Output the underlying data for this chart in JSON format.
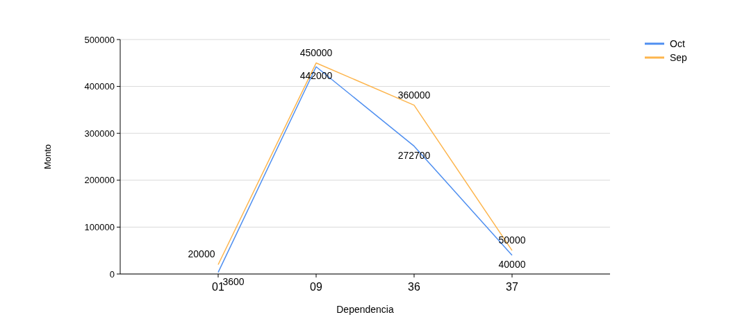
{
  "chart_data": {
    "type": "line",
    "xlabel": "Dependencia",
    "ylabel": "Monto",
    "categories": [
      "01",
      "09",
      "36",
      "37"
    ],
    "series": [
      {
        "name": "Oct",
        "color": "#4f8ff0",
        "values": [
          3600,
          442000,
          272700,
          40000
        ]
      },
      {
        "name": "Sep",
        "color": "#fdb54d",
        "values": [
          20000,
          450000,
          360000,
          50000
        ]
      }
    ],
    "ylim": [
      0,
      500000
    ],
    "yticks": [
      0,
      100000,
      200000,
      300000,
      400000,
      500000
    ],
    "grid": "y",
    "legend": "top right",
    "data_labels": true,
    "marker": "none"
  }
}
